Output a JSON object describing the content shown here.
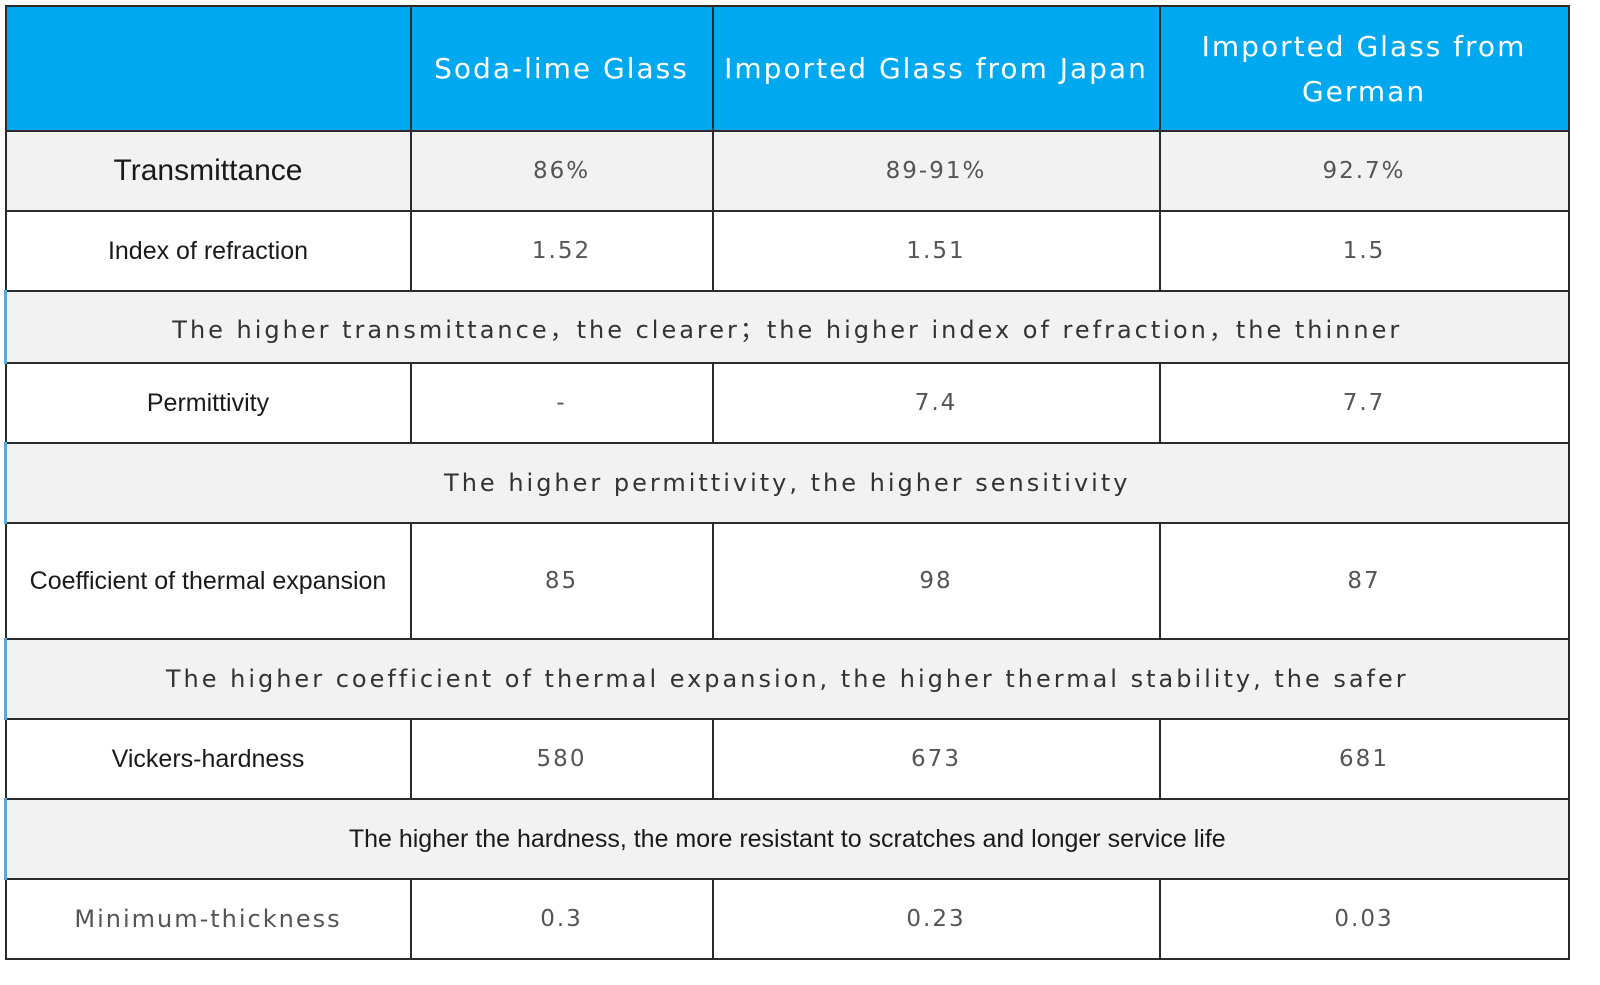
{
  "columns": [
    "",
    "Soda-lime Glass",
    "Imported Glass from Japan",
    "Imported Glass from German"
  ],
  "rows": {
    "transmittance": {
      "label": "Transmittance",
      "values": [
        "86%",
        "89-91%",
        "92.7%"
      ]
    },
    "refraction": {
      "label": "Index of refraction",
      "values": [
        "1.52",
        "1.51",
        "1.5"
      ]
    },
    "permittivity": {
      "label": "Permittivity",
      "values": [
        "-",
        "7.4",
        "7.7"
      ]
    },
    "thermal": {
      "label": "Coefficient of thermal expansion",
      "values": [
        "85",
        "98",
        "87"
      ]
    },
    "hardness": {
      "label": "Vickers-hardness",
      "values": [
        "580",
        "673",
        "681"
      ]
    },
    "thickness": {
      "label": "Minimum-thickness",
      "values": [
        "0.3",
        "0.23",
        "0.03"
      ]
    }
  },
  "notes": {
    "clarity": "The higher transmittance，the clearer；the higher index of refraction，the thinner",
    "sensitivity": "The higher permittivity, the higher sensitivity",
    "thermal": "The higher coefficient of thermal expansion, the higher thermal stability, the safer",
    "hardness": "The higher the hardness, the more resistant to scratches and longer service life"
  },
  "colors": {
    "header_bg": "#00a8ef",
    "header_text": "#ffffff",
    "shaded_bg": "#f2f2f2",
    "border": "#2b2b2b"
  }
}
